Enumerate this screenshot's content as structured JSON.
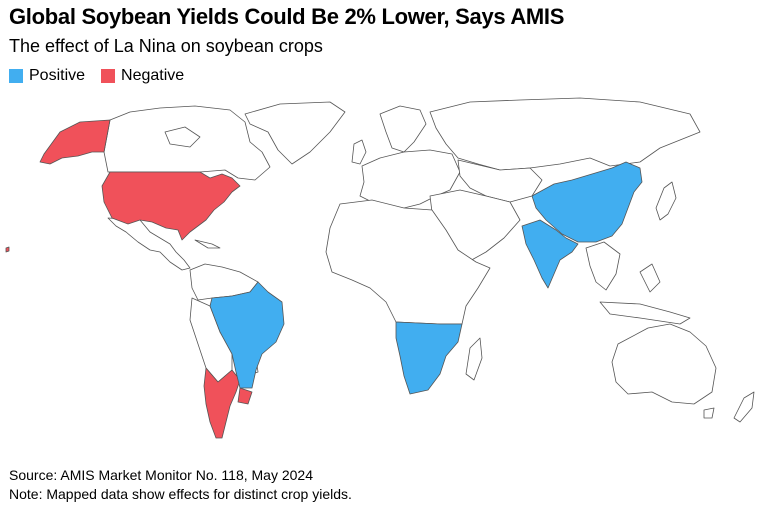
{
  "title": "Global Soybean Yields Could Be 2% Lower, Says AMIS",
  "subtitle": "The effect of La Nina on soybean crops",
  "legend": [
    {
      "label": "Positive",
      "color": "#41aef0"
    },
    {
      "label": "Negative",
      "color": "#f0515a"
    }
  ],
  "map": {
    "positive_regions": [
      "Brazil",
      "India",
      "China",
      "Southern Africa"
    ],
    "negative_regions": [
      "United States",
      "Argentina",
      "Uruguay"
    ],
    "neutral_fill": "#ffffff",
    "border_color": "#555555"
  },
  "footer": {
    "source": "Source: AMIS Market Monitor No. 118, May 2024",
    "note": "Note: Mapped data show effects for distinct crop yields."
  }
}
